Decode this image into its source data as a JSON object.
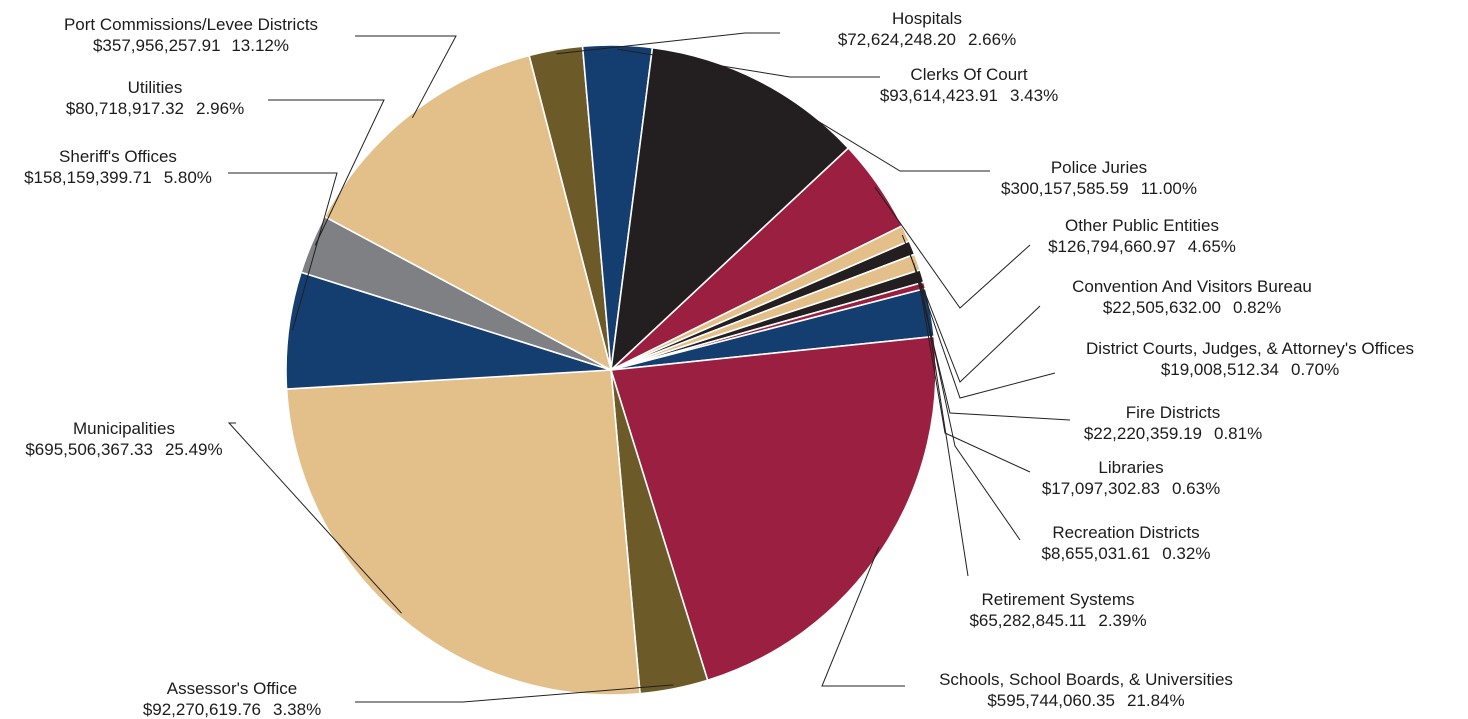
{
  "chart_data": {
    "type": "pie",
    "start": "Hospitals",
    "direction": "clockwise",
    "slices": [
      {
        "name": "Hospitals",
        "amount": "$72,624,248.20",
        "percent": "2.66%",
        "value": 2.66,
        "color": "#6d5a29"
      },
      {
        "name": "Clerks Of Court",
        "amount": "$93,614,423.91",
        "percent": "3.43%",
        "value": 3.43,
        "color": "#143d70"
      },
      {
        "name": "Police Juries",
        "amount": "$300,157,585.59",
        "percent": "11.00%",
        "value": 11.0,
        "color": "#231f20"
      },
      {
        "name": "Other Public Entities",
        "amount": "$126,794,660.97",
        "percent": "4.65%",
        "value": 4.65,
        "color": "#9b1f40"
      },
      {
        "name": "Convention And Visitors Bureau",
        "amount": "$22,505,632.00",
        "percent": "0.82%",
        "value": 0.82,
        "color": "#e3c08a"
      },
      {
        "name": "District Courts, Judges, & Attorney's Offices",
        "amount": "$19,008,512.34",
        "percent": "0.70%",
        "value": 0.7,
        "color": "#231f20"
      },
      {
        "name": "Fire Districts",
        "amount": "$22,220,359.19",
        "percent": "0.81%",
        "value": 0.81,
        "color": "#e3c08a"
      },
      {
        "name": "Libraries",
        "amount": "$17,097,302.83",
        "percent": "0.63%",
        "value": 0.63,
        "color": "#231f20"
      },
      {
        "name": "Recreation Districts",
        "amount": "$8,655,031.61",
        "percent": "0.32%",
        "value": 0.32,
        "color": "#9b1f40"
      },
      {
        "name": "Retirement Systems",
        "amount": "$65,282,845.11",
        "percent": "2.39%",
        "value": 2.39,
        "color": "#143d70"
      },
      {
        "name": "Schools, School Boards, & Universities",
        "amount": "$595,744,060.35",
        "percent": "21.84%",
        "value": 21.84,
        "color": "#9b1f40"
      },
      {
        "name": "Assessor's Office",
        "amount": "$92,270,619.76",
        "percent": "3.38%",
        "value": 3.38,
        "color": "#6d5a29"
      },
      {
        "name": "Municipalities",
        "amount": "$695,506,367.33",
        "percent": "25.49%",
        "value": 25.49,
        "color": "#e3c08a"
      },
      {
        "name": "Sheriff's Offices",
        "amount": "$158,159,399.71",
        "percent": "5.80%",
        "value": 5.8,
        "color": "#143d70"
      },
      {
        "name": "Utilities",
        "amount": "$80,718,917.32",
        "percent": "2.96%",
        "value": 2.96,
        "color": "#7f8083"
      },
      {
        "name": "Port Commissions/Levee Districts",
        "amount": "$357,956,257.91",
        "percent": "13.12%",
        "value": 13.12,
        "color": "#e3c08a"
      }
    ]
  }
}
